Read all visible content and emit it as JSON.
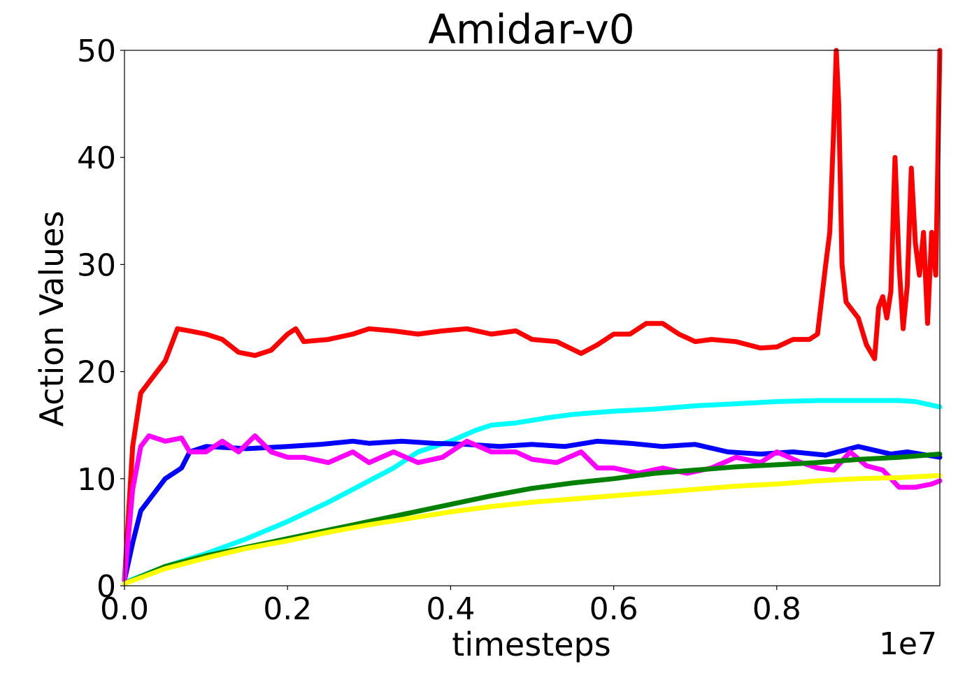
{
  "chart_data": {
    "type": "line",
    "title": "Amidar-v0",
    "xlabel": "timesteps",
    "ylabel": "Action Values",
    "x_offset_text": "1e7",
    "xlim": [
      0,
      1.0
    ],
    "ylim": [
      0,
      50
    ],
    "x_ticks": [
      0.0,
      0.2,
      0.4,
      0.6,
      0.8
    ],
    "x_tick_labels": [
      "0.0",
      "0.2",
      "0.4",
      "0.6",
      "0.8"
    ],
    "y_ticks": [
      0,
      10,
      20,
      30,
      40,
      50
    ],
    "y_tick_labels": [
      "0",
      "10",
      "20",
      "30",
      "40",
      "50"
    ],
    "grid": false,
    "legend": "none",
    "series": [
      {
        "color": "#ff0000",
        "x": [
          0.0,
          0.01,
          0.02,
          0.03,
          0.04,
          0.05,
          0.06,
          0.065,
          0.08,
          0.1,
          0.12,
          0.14,
          0.16,
          0.18,
          0.2,
          0.21,
          0.22,
          0.25,
          0.28,
          0.3,
          0.33,
          0.36,
          0.39,
          0.42,
          0.45,
          0.48,
          0.5,
          0.53,
          0.56,
          0.58,
          0.6,
          0.62,
          0.64,
          0.66,
          0.68,
          0.7,
          0.72,
          0.75,
          0.78,
          0.8,
          0.82,
          0.84,
          0.85,
          0.86,
          0.865,
          0.87,
          0.873,
          0.876,
          0.88,
          0.885,
          0.89,
          0.9,
          0.91,
          0.92,
          0.925,
          0.93,
          0.935,
          0.94,
          0.945,
          0.95,
          0.955,
          0.96,
          0.965,
          0.97,
          0.975,
          0.98,
          0.985,
          0.99,
          0.995,
          1.0
        ],
        "y": [
          0.5,
          13,
          18,
          19,
          20,
          21,
          23,
          24,
          23.8,
          23.5,
          23,
          21.8,
          21.5,
          22,
          23.5,
          24,
          22.8,
          23,
          23.5,
          24,
          23.8,
          23.5,
          23.8,
          24,
          23.5,
          23.8,
          23,
          22.8,
          21.7,
          22.5,
          23.5,
          23.5,
          24.5,
          24.5,
          23.5,
          22.8,
          23,
          22.8,
          22.2,
          22.3,
          23,
          23,
          23.5,
          30,
          33,
          43,
          50,
          45,
          30,
          26.5,
          26,
          25,
          22.5,
          21.2,
          26,
          27,
          25,
          27.5,
          40,
          30,
          24,
          28,
          39,
          32,
          29,
          33,
          24.5,
          33,
          29,
          50
        ]
      },
      {
        "color": "#00ffff",
        "x": [
          0.0,
          0.05,
          0.1,
          0.15,
          0.2,
          0.25,
          0.3,
          0.33,
          0.36,
          0.4,
          0.43,
          0.45,
          0.48,
          0.52,
          0.55,
          0.6,
          0.65,
          0.7,
          0.75,
          0.8,
          0.85,
          0.9,
          0.95,
          0.97,
          1.0
        ],
        "y": [
          0.3,
          1.8,
          3,
          4.4,
          6,
          7.8,
          9.8,
          11,
          12.5,
          13.5,
          14.5,
          15,
          15.2,
          15.7,
          16,
          16.3,
          16.5,
          16.8,
          17,
          17.2,
          17.3,
          17.3,
          17.3,
          17.2,
          16.7
        ]
      },
      {
        "color": "#0000ff",
        "x": [
          0.0,
          0.01,
          0.02,
          0.03,
          0.05,
          0.07,
          0.08,
          0.1,
          0.15,
          0.2,
          0.24,
          0.28,
          0.3,
          0.34,
          0.38,
          0.42,
          0.46,
          0.5,
          0.54,
          0.58,
          0.62,
          0.66,
          0.7,
          0.74,
          0.78,
          0.82,
          0.86,
          0.9,
          0.94,
          0.96,
          1.0
        ],
        "y": [
          0.5,
          4,
          7,
          8,
          10,
          11,
          12.5,
          13,
          12.8,
          13,
          13.2,
          13.5,
          13.3,
          13.5,
          13.3,
          13.2,
          13,
          13.2,
          13,
          13.5,
          13.3,
          13,
          13.2,
          12.5,
          12.3,
          12.5,
          12.2,
          13,
          12.3,
          12.5,
          12
        ]
      },
      {
        "color": "#ff00ff",
        "x": [
          0.0,
          0.01,
          0.02,
          0.03,
          0.05,
          0.07,
          0.08,
          0.1,
          0.12,
          0.14,
          0.16,
          0.18,
          0.2,
          0.22,
          0.25,
          0.28,
          0.3,
          0.33,
          0.36,
          0.39,
          0.42,
          0.45,
          0.48,
          0.5,
          0.53,
          0.56,
          0.58,
          0.6,
          0.63,
          0.66,
          0.69,
          0.72,
          0.75,
          0.78,
          0.8,
          0.83,
          0.85,
          0.87,
          0.89,
          0.91,
          0.93,
          0.95,
          0.97,
          0.99,
          1.0
        ],
        "y": [
          0.5,
          9,
          13,
          14,
          13.5,
          13.8,
          12.5,
          12.5,
          13.5,
          12.5,
          14,
          12.5,
          12,
          12,
          11.5,
          12.5,
          11.5,
          12.5,
          11.5,
          12,
          13.5,
          12.5,
          12.5,
          11.8,
          11.5,
          12.5,
          11,
          11,
          10.5,
          11,
          10.5,
          11,
          12,
          11.5,
          12.5,
          11.5,
          11,
          10.8,
          12.5,
          11.2,
          10.8,
          9.2,
          9.2,
          9.5,
          9.8
        ]
      },
      {
        "color": "#008000",
        "x": [
          0.0,
          0.05,
          0.1,
          0.15,
          0.2,
          0.25,
          0.3,
          0.35,
          0.4,
          0.45,
          0.5,
          0.55,
          0.6,
          0.65,
          0.7,
          0.75,
          0.8,
          0.85,
          0.9,
          0.95,
          1.0
        ],
        "y": [
          0.2,
          1.8,
          2.8,
          3.6,
          4.4,
          5.2,
          6,
          6.8,
          7.6,
          8.4,
          9.1,
          9.6,
          10,
          10.5,
          10.8,
          11.1,
          11.3,
          11.5,
          11.8,
          12,
          12.3
        ]
      },
      {
        "color": "#ffff00",
        "x": [
          0.0,
          0.05,
          0.1,
          0.15,
          0.2,
          0.25,
          0.3,
          0.35,
          0.4,
          0.45,
          0.5,
          0.55,
          0.6,
          0.65,
          0.7,
          0.75,
          0.8,
          0.85,
          0.9,
          0.95,
          1.0
        ],
        "y": [
          0.2,
          1.6,
          2.6,
          3.5,
          4.2,
          5,
          5.7,
          6.3,
          6.9,
          7.4,
          7.8,
          8.1,
          8.4,
          8.7,
          9,
          9.3,
          9.5,
          9.8,
          10,
          10.1,
          10.3
        ]
      }
    ]
  }
}
